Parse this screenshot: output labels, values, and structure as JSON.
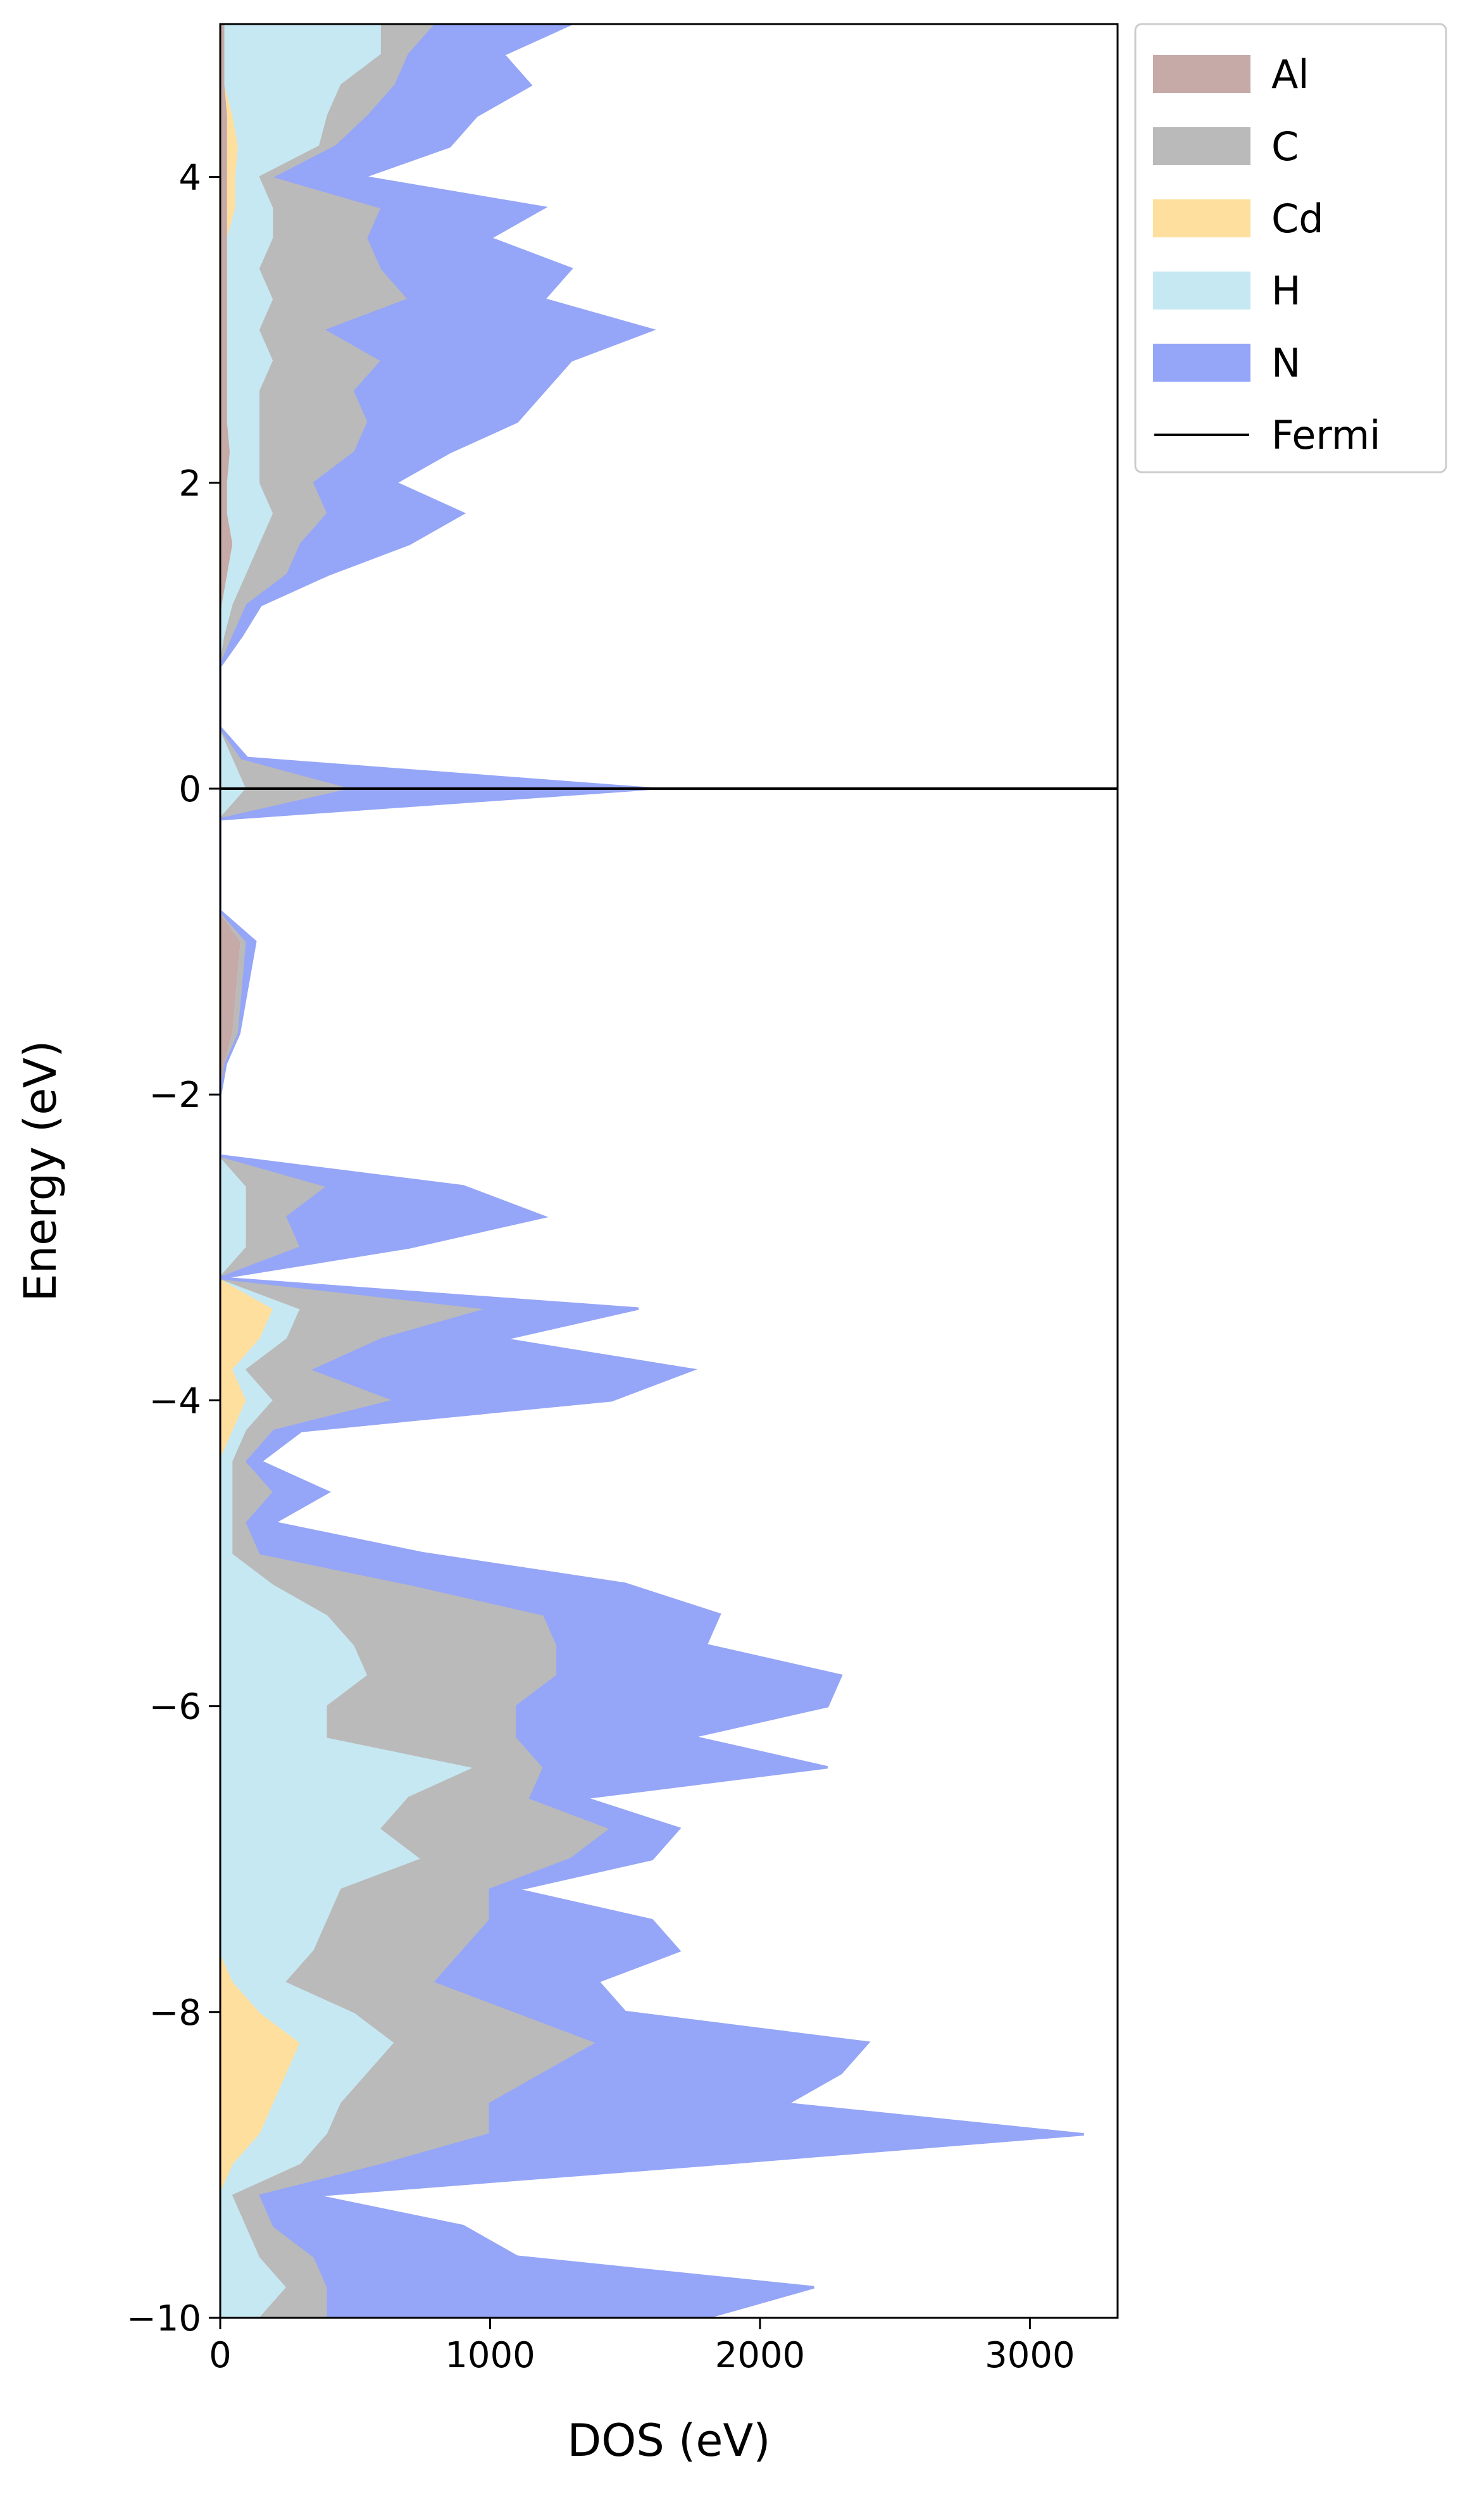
{
  "chart_data": {
    "type": "stacked_area_horizontal",
    "xlabel": "DOS (eV)",
    "ylabel": "Energy (eV)",
    "xlim": [
      0,
      3325
    ],
    "xticks": [
      0,
      1000,
      2000,
      3000
    ],
    "ylim": [
      -10,
      5
    ],
    "yticks": [
      {
        "value": -10,
        "label": "−10"
      },
      {
        "value": -8,
        "label": "−8"
      },
      {
        "value": -6,
        "label": "−6"
      },
      {
        "value": -4,
        "label": "−4"
      },
      {
        "value": -2,
        "label": "−2"
      },
      0,
      2,
      4
    ],
    "fermi_level": 0,
    "fermi_label": "Fermi",
    "fermi_color": "#000000",
    "legend": "outside upper right",
    "y": [
      -10,
      -9.8,
      -9.6,
      -9.4,
      -9.2,
      -9,
      -8.8,
      -8.6,
      -8.4,
      -8.2,
      -8,
      -7.8,
      -7.6,
      -7.4,
      -7.2,
      -7,
      -6.8,
      -6.6,
      -6.4,
      -6.2,
      -6,
      -5.8,
      -5.6,
      -5.4,
      -5.2,
      -5,
      -4.8,
      -4.6,
      -4.4,
      -4.2,
      -4,
      -3.8,
      -3.6,
      -3.4,
      -3.2,
      -3,
      -2.8,
      -2.6,
      -2.4,
      -2.2,
      -2,
      -1.8,
      -1.6,
      -1.4,
      -1.2,
      -1,
      -0.8,
      -0.6,
      -0.4,
      -0.2,
      0,
      0.2,
      0.4,
      0.6,
      0.8,
      1,
      1.2,
      1.4,
      1.6,
      1.8,
      2,
      2.2,
      2.4,
      2.6,
      2.8,
      3,
      3.2,
      3.4,
      3.6,
      3.8,
      4,
      4.2,
      4.4,
      4.6,
      4.8,
      5
    ],
    "series": [
      {
        "name": "Al",
        "color": "#c6aaa8",
        "values": [
          0,
          0,
          0,
          0,
          0,
          0,
          0,
          0,
          0,
          0,
          0,
          0,
          0,
          0,
          0,
          0,
          0,
          0,
          0,
          0,
          0,
          0,
          0,
          0,
          0,
          0,
          0,
          0,
          0,
          0,
          0,
          0,
          0,
          0,
          0,
          0,
          0,
          0,
          0,
          0,
          0,
          20,
          50,
          60,
          70,
          80,
          0,
          0,
          0,
          0,
          0,
          0,
          0,
          0,
          0,
          0,
          10,
          30,
          50,
          30,
          30,
          40,
          30,
          30,
          30,
          30,
          30,
          30,
          30,
          30,
          30,
          30,
          30,
          20,
          20,
          20
        ]
      },
      {
        "name": "C",
        "color": "#bababa",
        "values": [
          250,
          150,
          200,
          100,
          100,
          300,
          600,
          550,
          650,
          750,
          600,
          550,
          550,
          600,
          550,
          550,
          850,
          450,
          250,
          700,
          700,
          700,
          750,
          800,
          500,
          100,
          50,
          150,
          50,
          100,
          450,
          250,
          350,
          700,
          0,
          200,
          150,
          300,
          0,
          0,
          0,
          0,
          20,
          20,
          20,
          20,
          0,
          0,
          0,
          0,
          400,
          30,
          0,
          0,
          0,
          30,
          50,
          150,
          150,
          200,
          200,
          350,
          400,
          350,
          400,
          250,
          500,
          450,
          350,
          400,
          60,
          60,
          150,
          200,
          100,
          200
        ]
      },
      {
        "name": "Cd",
        "color": "#ffdf9e",
        "values": [
          0,
          0,
          0,
          0,
          0,
          50,
          150,
          200,
          250,
          300,
          150,
          50,
          0,
          0,
          0,
          0,
          0,
          0,
          0,
          0,
          0,
          0,
          0,
          0,
          0,
          0,
          0,
          0,
          0,
          50,
          100,
          50,
          150,
          200,
          0,
          0,
          0,
          0,
          0,
          0,
          0,
          0,
          0,
          0,
          0,
          0,
          0,
          0,
          0,
          0,
          0,
          0,
          0,
          0,
          0,
          0,
          0,
          0,
          0,
          0,
          0,
          0,
          0,
          0,
          0,
          0,
          0,
          0,
          0,
          30,
          30,
          40,
          20,
          0,
          0,
          0
        ]
      },
      {
        "name": "H",
        "color": "#c6e8f3",
        "values": [
          150,
          250,
          150,
          100,
          50,
          250,
          250,
          250,
          300,
          350,
          350,
          200,
          350,
          400,
          450,
          750,
          600,
          700,
          950,
          400,
          400,
          550,
          500,
          400,
          200,
          50,
          50,
          50,
          50,
          50,
          100,
          50,
          100,
          100,
          0,
          100,
          100,
          100,
          0,
          0,
          0,
          0,
          0,
          0,
          0,
          0,
          0,
          0,
          0,
          0,
          100,
          50,
          0,
          0,
          0,
          20,
          40,
          70,
          100,
          170,
          120,
          110,
          120,
          120,
          170,
          120,
          170,
          120,
          170,
          140,
          90,
          300,
          350,
          430,
          580,
          580
        ]
      },
      {
        "name": "N",
        "color": "#95a5f7",
        "values": [
          1400,
          1800,
          750,
          700,
          200,
          1200,
          2200,
          1100,
          1100,
          1000,
          400,
          600,
          800,
          600,
          100,
          300,
          250,
          200,
          1050,
          650,
          1150,
          1050,
          550,
          650,
          800,
          600,
          100,
          200,
          50,
          100,
          800,
          1400,
          450,
          550,
          0,
          400,
          950,
          500,
          0,
          0,
          0,
          0,
          0,
          10,
          20,
          30,
          0,
          0,
          0,
          0,
          1100,
          20,
          0,
          0,
          0,
          30,
          50,
          150,
          400,
          500,
          300,
          350,
          550,
          700,
          700,
          1200,
          500,
          700,
          450,
          600,
          320,
          420,
          400,
          500,
          350,
          500
        ]
      }
    ]
  }
}
